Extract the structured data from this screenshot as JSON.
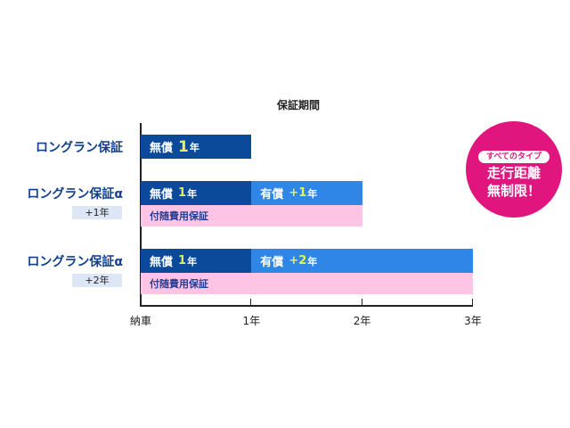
{
  "chart_data": {
    "type": "bar",
    "orientation": "horizontal-stacked",
    "title": "保証期間",
    "x_ticks": [
      "納車",
      "1年",
      "2年",
      "3年"
    ],
    "xlim": [
      0,
      3
    ],
    "grid": false,
    "categories": [
      {
        "label": "ロングラン保証",
        "badge": ""
      },
      {
        "label": "ロングラン保証α",
        "badge": "+1年"
      },
      {
        "label": "ロングラン保証α",
        "badge": "+2年"
      }
    ],
    "rows": [
      {
        "segments": [
          {
            "name": "無償",
            "value_label": "1",
            "unit": "年",
            "start": 0,
            "end": 1,
            "color": "#0b4a9a"
          }
        ],
        "extra": null
      },
      {
        "segments": [
          {
            "name": "無償",
            "value_label": "1",
            "unit": "年",
            "start": 0,
            "end": 1,
            "color": "#0b4a9a"
          },
          {
            "name": "有償",
            "value_label": "+1",
            "unit": "年",
            "start": 1,
            "end": 2,
            "color": "#2f86e6"
          }
        ],
        "extra": {
          "name": "付随費用保証",
          "start": 0,
          "end": 2,
          "color": "#fdc4e6"
        }
      },
      {
        "segments": [
          {
            "name": "無償",
            "value_label": "1",
            "unit": "年",
            "start": 0,
            "end": 1,
            "color": "#0b4a9a"
          },
          {
            "name": "有償",
            "value_label": "+2",
            "unit": "年",
            "start": 1,
            "end": 3,
            "color": "#2f86e6"
          }
        ],
        "extra": {
          "name": "付随費用保証",
          "start": 0,
          "end": 3,
          "color": "#fdc4e6"
        }
      }
    ]
  },
  "callout": {
    "pill": "すべてのタイプ",
    "line1": "走行距離",
    "line2": "無制限！",
    "color": "#e0157e"
  }
}
